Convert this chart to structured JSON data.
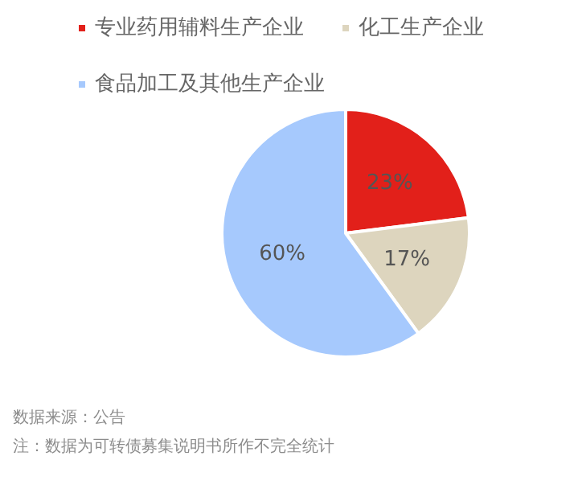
{
  "chart_data": {
    "type": "pie",
    "categories": [
      "专业药用辅料生产企业",
      "化工生产企业",
      "食品加工及其他生产企业"
    ],
    "values": [
      23,
      17,
      60
    ],
    "value_labels": [
      "23%",
      "17%",
      "60%"
    ],
    "colors": [
      "#e2201a",
      "#ddd5be",
      "#a6c9fd"
    ],
    "legend": "top",
    "annotations": [
      "数据来源：公告",
      "注：数据为可转债募集说明书所作不完全统计"
    ]
  }
}
